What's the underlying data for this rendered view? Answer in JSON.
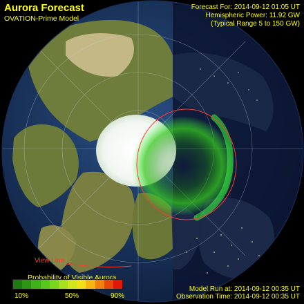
{
  "header": {
    "title": "Aurora Forecast",
    "subtitle": "OVATION-Prime Model"
  },
  "info": {
    "forecast_for": "Forecast For: 2014-09-12 01:05 UT",
    "hemispheric_power": "Hemispheric Power: 11.92 GW",
    "typical_range": "(Typical Range 5 to 150 GW)"
  },
  "footer": {
    "model_run": "Model Run at: 2014-09-12 00:35 UT",
    "observation_time": "Observation Time: 2014-09-12 00:35 UT"
  },
  "map": {
    "view_line_label": "View Line",
    "view_line_color": "#ff3b2f",
    "aurora_color": "#3cff3c"
  },
  "legend": {
    "title": "Probability of Visible Aurora",
    "ticks": [
      "10%",
      "50%",
      "90%"
    ],
    "colors": [
      "#1f7a13",
      "#2e9416",
      "#3fb01a",
      "#57c61d",
      "#7ad61f",
      "#a6e11f",
      "#cfe61d",
      "#f0df17",
      "#f5b512",
      "#f0800d",
      "#e8470a",
      "#e01808"
    ]
  }
}
